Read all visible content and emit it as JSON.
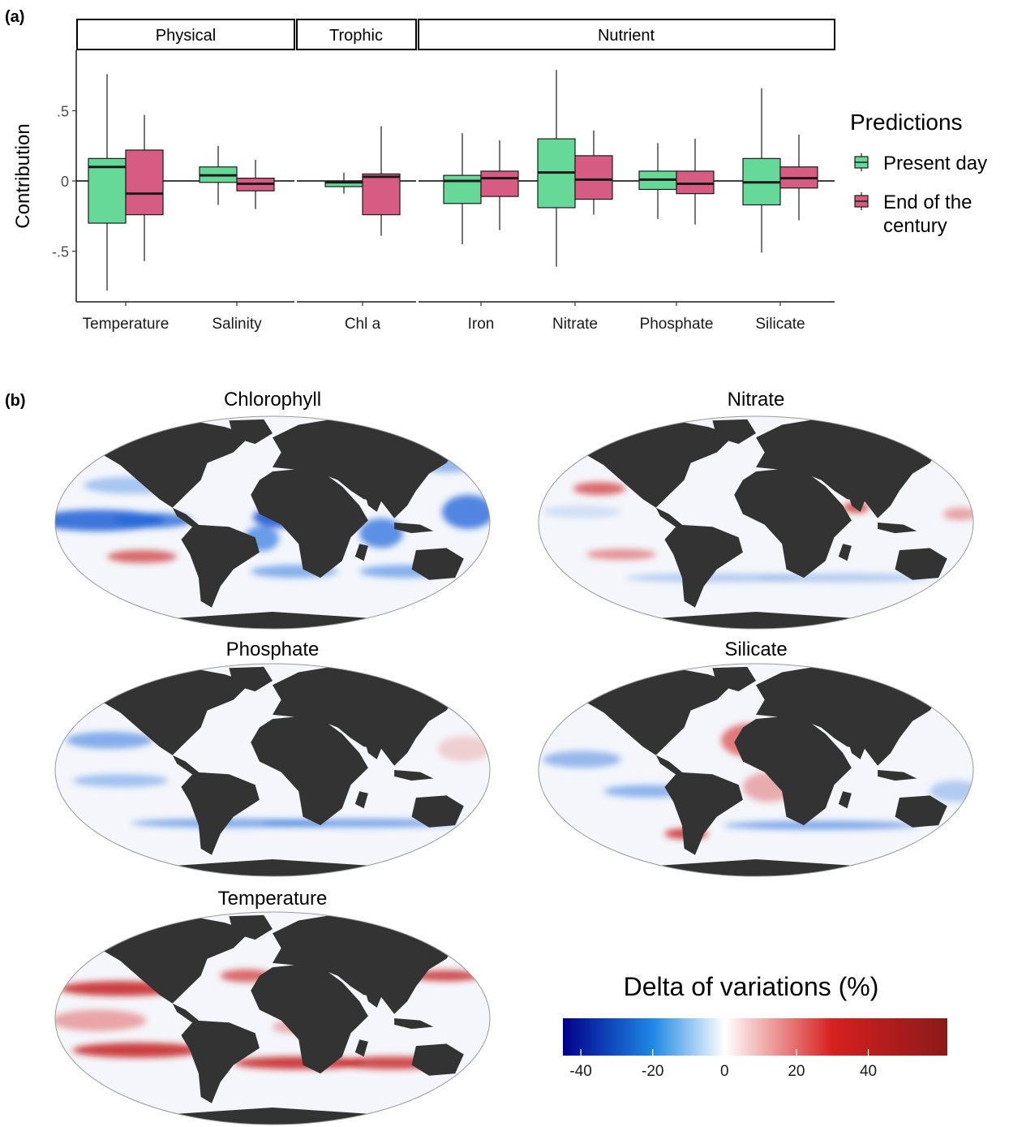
{
  "panel_a_label": "(a)",
  "panel_b_label": "(b)",
  "chart_data": [
    {
      "type": "box",
      "ylabel": "Contribution",
      "ylim": [
        -0.86,
        0.93
      ],
      "yticks": [
        -0.5,
        0,
        0.5
      ],
      "ytick_labels": [
        "-.5",
        "0",
        ".5"
      ],
      "facets": [
        {
          "label": "Physical",
          "categories": [
            "Temperature",
            "Salinity"
          ]
        },
        {
          "label": "Trophic",
          "categories": [
            "Chl a"
          ]
        },
        {
          "label": "Nutrient",
          "categories": [
            "Iron",
            "Nitrate",
            "Phosphate",
            "Silicate"
          ]
        }
      ],
      "legend": {
        "title": "Predictions",
        "placement": "right",
        "entries": [
          "Present day",
          "End of the century"
        ]
      },
      "series": [
        {
          "name": "Present day",
          "color": "#66d998",
          "boxes": [
            {
              "category": "Temperature",
              "min": -0.78,
              "q1": -0.3,
              "median": 0.1,
              "q3": 0.16,
              "max": 0.76
            },
            {
              "category": "Salinity",
              "min": -0.17,
              "q1": -0.01,
              "median": 0.04,
              "q3": 0.1,
              "max": 0.25
            },
            {
              "category": "Chl a",
              "min": -0.09,
              "q1": -0.04,
              "median": -0.01,
              "q3": 0.0,
              "max": 0.06
            },
            {
              "category": "Iron",
              "min": -0.45,
              "q1": -0.16,
              "median": 0.0,
              "q3": 0.04,
              "max": 0.34
            },
            {
              "category": "Nitrate",
              "min": -0.61,
              "q1": -0.19,
              "median": 0.06,
              "q3": 0.3,
              "max": 0.79
            },
            {
              "category": "Phosphate",
              "min": -0.27,
              "q1": -0.06,
              "median": 0.01,
              "q3": 0.07,
              "max": 0.27
            },
            {
              "category": "Silicate",
              "min": -0.51,
              "q1": -0.17,
              "median": -0.01,
              "q3": 0.16,
              "max": 0.66
            }
          ]
        },
        {
          "name": "End of the century",
          "color": "#d65c84",
          "boxes": [
            {
              "category": "Temperature",
              "min": -0.57,
              "q1": -0.24,
              "median": -0.09,
              "q3": 0.22,
              "max": 0.47
            },
            {
              "category": "Salinity",
              "min": -0.2,
              "q1": -0.07,
              "median": -0.02,
              "q3": 0.02,
              "max": 0.15
            },
            {
              "category": "Chl a",
              "min": -0.39,
              "q1": -0.24,
              "median": 0.03,
              "q3": 0.05,
              "max": 0.39
            },
            {
              "category": "Iron",
              "min": -0.35,
              "q1": -0.11,
              "median": 0.02,
              "q3": 0.07,
              "max": 0.29
            },
            {
              "category": "Nitrate",
              "min": -0.24,
              "q1": -0.13,
              "median": 0.01,
              "q3": 0.18,
              "max": 0.36
            },
            {
              "category": "Phosphate",
              "min": -0.31,
              "q1": -0.09,
              "median": -0.02,
              "q3": 0.07,
              "max": 0.3
            },
            {
              "category": "Silicate",
              "min": -0.28,
              "q1": -0.05,
              "median": 0.02,
              "q3": 0.1,
              "max": 0.33
            }
          ]
        }
      ]
    },
    {
      "type": "heatmap",
      "maps": [
        {
          "title": "Chlorophyll"
        },
        {
          "title": "Nitrate"
        },
        {
          "title": "Phosphate"
        },
        {
          "title": "Silicate"
        },
        {
          "title": "Temperature"
        }
      ],
      "colorbar": {
        "title": "Delta of variations (%)",
        "range": [
          -45,
          62
        ],
        "ticks": [
          -40,
          -20,
          0,
          20,
          40
        ],
        "tick_labels": [
          "-40",
          "-20",
          "0",
          "20",
          "40"
        ],
        "colors": [
          "#00008b",
          "#1e88e5",
          "#ffffff",
          "#d62020",
          "#8b1a1a"
        ]
      }
    }
  ],
  "colors": {
    "land": "#333333",
    "ocean_base": "#f4f6fb",
    "frame": "#1a1a1a",
    "zero_line": "#000000"
  }
}
